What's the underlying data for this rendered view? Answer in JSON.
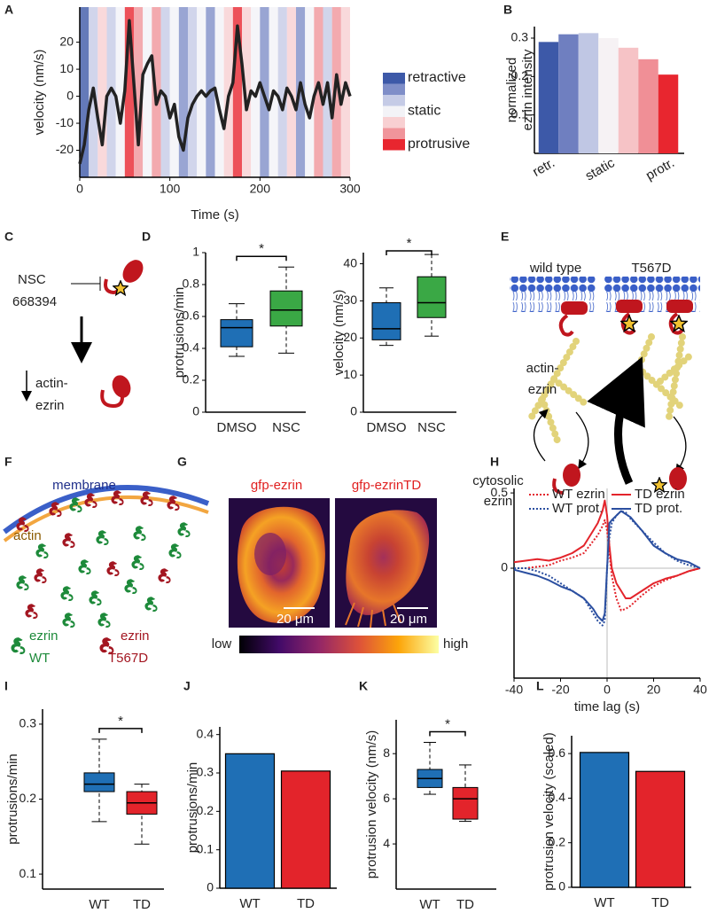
{
  "panels": [
    "A",
    "B",
    "C",
    "D",
    "E",
    "F",
    "G",
    "H",
    "I",
    "J",
    "K",
    "L"
  ],
  "chart_data": [
    {
      "type": "line",
      "x": [
        0,
        5,
        10,
        15,
        20,
        25,
        30,
        35,
        40,
        45,
        50,
        55,
        60,
        65,
        70,
        75,
        80,
        85,
        90,
        95,
        100,
        105,
        110,
        115,
        120,
        125,
        130,
        135,
        140,
        145,
        150,
        155,
        160,
        165,
        170,
        175,
        180,
        185,
        190,
        195,
        200,
        205,
        210,
        215,
        220,
        225,
        230,
        235,
        240,
        245,
        250,
        255,
        260,
        265,
        270,
        275,
        280,
        285,
        290,
        295,
        300
      ],
      "values": [
        -25,
        -18,
        -5,
        3,
        -8,
        -18,
        0,
        3,
        0,
        -10,
        2,
        28,
        5,
        -18,
        8,
        12,
        15,
        -3,
        2,
        0,
        -8,
        -3,
        -15,
        -20,
        -8,
        -3,
        0,
        2,
        0,
        2,
        3,
        -5,
        -12,
        0,
        5,
        26,
        12,
        -5,
        2,
        0,
        5,
        0,
        -5,
        2,
        0,
        -5,
        3,
        0,
        -5,
        5,
        -3,
        -8,
        0,
        5,
        -3,
        5,
        -8,
        8,
        -3,
        5,
        0
      ],
      "color": "#222222",
      "xlabel": "Time (s)",
      "ylabel": "velocity (nm/s)",
      "xlim": [
        0,
        300
      ],
      "xticks": [
        0,
        100,
        200,
        300
      ],
      "ylim": [
        -30,
        33
      ],
      "yticks": [
        -20,
        -10,
        0,
        10,
        20
      ],
      "band_edges": [
        0,
        10,
        20,
        30,
        40,
        50,
        60,
        70,
        80,
        90,
        100,
        110,
        120,
        130,
        140,
        150,
        160,
        170,
        180,
        190,
        200,
        210,
        220,
        230,
        240,
        250,
        260,
        270,
        280,
        290,
        300
      ],
      "band_levels": [
        0,
        2,
        4,
        2,
        3,
        6,
        5,
        3,
        5,
        2,
        3,
        1,
        2,
        3,
        1,
        3,
        4,
        6,
        4,
        3,
        1,
        3,
        2,
        4,
        1,
        3,
        5,
        2,
        5,
        4
      ],
      "legend": {
        "labels": [
          "retractive",
          null,
          null,
          "static",
          null,
          null,
          "protrusive"
        ],
        "colors": [
          "#3d59a8",
          "#7f8ec8",
          "#c5cbe6",
          "#f3f3f7",
          "#f8d0d2",
          "#f0959b",
          "#e8262f"
        ]
      }
    },
    {
      "type": "bar",
      "categories": [
        "retr.",
        null,
        null,
        "static",
        null,
        null,
        "protr."
      ],
      "values": [
        0.29,
        0.31,
        0.313,
        0.3,
        0.275,
        0.245,
        0.205
      ],
      "colors": [
        "#3d59a8",
        "#6f7fc0",
        "#c0c7e4",
        "#f6f2f4",
        "#f6c3c6",
        "#f08f96",
        "#e8262f"
      ],
      "ylabel": [
        "normalized",
        "ezrin intensity"
      ],
      "ylim": [
        0,
        0.33
      ],
      "yticks": [
        0.1,
        0.2,
        0.3
      ]
    },
    {
      "type": "box",
      "categories": [
        "DMSO",
        "NSC"
      ],
      "boxes": [
        [
          0.35,
          0.41,
          0.53,
          0.58,
          0.68
        ],
        [
          0.37,
          0.54,
          0.64,
          0.76,
          0.91
        ]
      ],
      "colors": [
        "#1f6fb5",
        "#3aa845"
      ],
      "ylabel": "protrusions/min",
      "ylim": [
        0,
        1
      ],
      "yticks": [
        0,
        0.2,
        0.4,
        0.6,
        0.8,
        1
      ],
      "annotation": "*"
    },
    {
      "type": "box",
      "categories": [
        "DMSO",
        "NSC"
      ],
      "boxes": [
        [
          18,
          19.5,
          22.5,
          29.5,
          33.5
        ],
        [
          20.5,
          25.5,
          29.5,
          36.5,
          42.5
        ]
      ],
      "colors": [
        "#1f6fb5",
        "#3aa845"
      ],
      "ylabel": "velocity (nm/s)",
      "ylim": [
        0,
        43
      ],
      "yticks": [
        0,
        10,
        20,
        30,
        40
      ],
      "annotation": "*"
    },
    {
      "type": "line",
      "x": [
        -40,
        -35,
        -30,
        -25,
        -20,
        -15,
        -10,
        -6,
        -4,
        -2,
        -1,
        0,
        1,
        2,
        4,
        6,
        8,
        10,
        15,
        20,
        25,
        30,
        35,
        40
      ],
      "series": [
        {
          "name": "WT ezrin",
          "color": "#e3242b",
          "dash": true,
          "values": [
            0.0,
            0.0,
            0.01,
            0.02,
            0.05,
            0.07,
            0.1,
            0.18,
            0.22,
            0.28,
            0.32,
            0.25,
            0.1,
            -0.05,
            -0.2,
            -0.28,
            -0.27,
            -0.25,
            -0.18,
            -0.12,
            -0.08,
            -0.05,
            -0.02,
            0.0
          ]
        },
        {
          "name": "WT prot.",
          "color": "#2b4fa0",
          "dash": true,
          "values": [
            0.0,
            0.0,
            -0.02,
            -0.05,
            -0.1,
            -0.15,
            -0.2,
            -0.3,
            -0.35,
            -0.38,
            -0.35,
            0.0,
            0.2,
            0.3,
            0.35,
            0.38,
            0.37,
            0.33,
            0.25,
            0.17,
            0.1,
            0.05,
            0.02,
            0.0
          ]
        },
        {
          "name": "TD ezrin",
          "color": "#e3242b",
          "dash": false,
          "values": [
            0.04,
            0.05,
            0.06,
            0.05,
            0.07,
            0.1,
            0.15,
            0.25,
            0.3,
            0.38,
            0.45,
            0.35,
            0.15,
            0.0,
            -0.1,
            -0.15,
            -0.2,
            -0.2,
            -0.15,
            -0.1,
            -0.07,
            -0.05,
            -0.02,
            0.0
          ]
        },
        {
          "name": "TD prot.",
          "color": "#2b4fa0",
          "dash": false,
          "values": [
            -0.01,
            -0.03,
            -0.05,
            -0.08,
            -0.12,
            -0.15,
            -0.2,
            -0.27,
            -0.32,
            -0.35,
            -0.3,
            0.0,
            0.3,
            0.32,
            0.35,
            0.38,
            0.36,
            0.34,
            0.25,
            0.15,
            0.1,
            0.06,
            0.04,
            0.0
          ]
        }
      ],
      "xlabel": "time lag (s)",
      "xlim": [
        -40,
        40
      ],
      "xticks": [
        -40,
        -20,
        0,
        20,
        40
      ],
      "ylim": [
        -0.73,
        0.53
      ],
      "yticks": [
        0,
        0.5
      ]
    },
    {
      "type": "box",
      "categories": [
        "WT",
        "TD"
      ],
      "boxes": [
        [
          0.17,
          0.21,
          0.22,
          0.235,
          0.28
        ],
        [
          0.14,
          0.18,
          0.195,
          0.21,
          0.22
        ]
      ],
      "colors": [
        "#1f6fb5",
        "#e3242b"
      ],
      "ylabel": "protrusions/min",
      "ylim": [
        0.08,
        0.32
      ],
      "yticks": [
        0.1,
        0.2,
        0.3
      ],
      "annotation": "*"
    },
    {
      "type": "bar",
      "categories": [
        "WT",
        "TD"
      ],
      "values": [
        0.35,
        0.305
      ],
      "colors": [
        "#1f6fb5",
        "#e3242b"
      ],
      "ylabel": "protrusions/min",
      "ylim": [
        0,
        0.42
      ],
      "yticks": [
        0,
        0.1,
        0.2,
        0.3,
        0.4
      ]
    },
    {
      "type": "box",
      "categories": [
        "WT",
        "TD"
      ],
      "boxes": [
        [
          6.2,
          6.5,
          6.9,
          7.3,
          8.5
        ],
        [
          5.0,
          5.1,
          6.0,
          6.5,
          7.5
        ]
      ],
      "colors": [
        "#1f6fb5",
        "#e3242b"
      ],
      "ylabel": "protrusion velocity (nm/s)",
      "ylim": [
        2,
        9.5
      ],
      "yticks": [
        4,
        6,
        8
      ],
      "annotation": "*"
    },
    {
      "type": "bar",
      "categories": [
        "WT",
        "TD"
      ],
      "values": [
        0.605,
        0.52
      ],
      "colors": [
        "#1f6fb5",
        "#e3242b"
      ],
      "ylabel": "protrusion velocity (scaled)",
      "ylim": [
        0,
        0.68
      ],
      "yticks": [
        0,
        0.2,
        0.4,
        0.6
      ]
    }
  ],
  "diagram_c": {
    "inhibitor": [
      "NSC",
      "668394"
    ],
    "product": [
      "actin-",
      "ezrin"
    ]
  },
  "diagram_e": {
    "conditions": [
      "wild type",
      "T567D"
    ],
    "bound": [
      "actin-",
      "ezrin"
    ],
    "free": [
      "cytosolic",
      "ezrin"
    ]
  },
  "diagram_f": {
    "membrane": "membrane",
    "actin": "actin",
    "legend": [
      [
        "ezrin",
        "WT"
      ],
      [
        "ezrin",
        "T567D"
      ]
    ]
  },
  "images_g": {
    "titles": [
      "gfp-ezrin",
      "gfp-ezrinTD"
    ],
    "scale_bars": [
      "20 μm",
      "20 μm"
    ],
    "colorbar": [
      "low",
      "high"
    ]
  }
}
